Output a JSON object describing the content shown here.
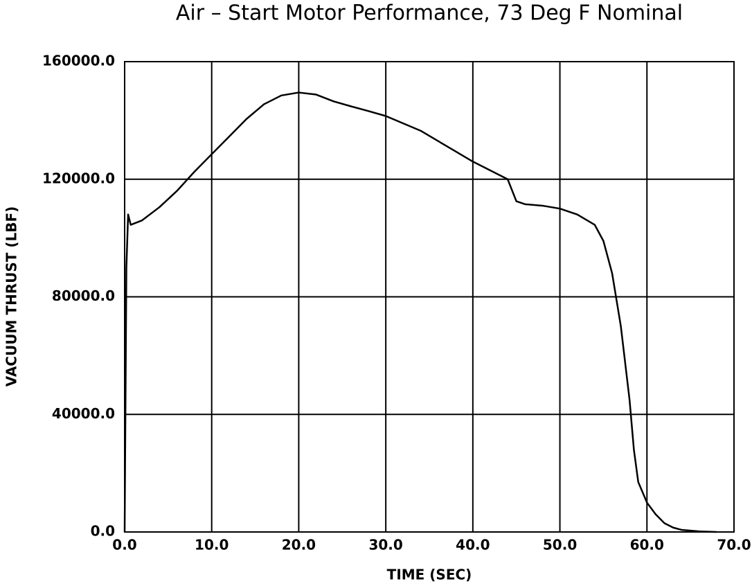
{
  "chart_data": {
    "type": "line",
    "title": "Air – Start Motor Performance, 73 Deg F Nominal",
    "x_label": "TIME (SEC)",
    "y_label": "VACUUM THRUST (LBF)",
    "color": "#000000",
    "grid": true,
    "x": [
      0,
      0.2,
      0.4,
      0.7,
      2,
      4,
      6,
      8,
      10,
      12,
      14,
      16,
      18,
      20,
      22,
      24,
      26,
      28,
      30,
      32,
      34,
      36,
      38,
      40,
      42,
      44,
      45,
      46,
      48,
      50,
      52,
      54,
      55,
      56,
      57,
      58,
      58.5,
      59,
      60,
      61,
      62,
      63,
      64,
      66,
      68
    ],
    "values": [
      0,
      90000,
      108000,
      104500,
      106000,
      110500,
      116000,
      122500,
      128500,
      134500,
      140500,
      145500,
      148500,
      149500,
      148800,
      146500,
      144800,
      143200,
      141500,
      139000,
      136500,
      133000,
      129500,
      126000,
      123000,
      120000,
      112500,
      111500,
      111000,
      110000,
      108000,
      104500,
      99000,
      88000,
      70000,
      45000,
      28000,
      17000,
      10000,
      6000,
      3000,
      1500,
      700,
      200,
      0
    ],
    "xlim": [
      0,
      70
    ],
    "xticks": [
      {
        "value": 0,
        "label": "0.0"
      },
      {
        "value": 10,
        "label": "10.0"
      },
      {
        "value": 20,
        "label": "20.0"
      },
      {
        "value": 30,
        "label": "30.0"
      },
      {
        "value": 40,
        "label": "40.0"
      },
      {
        "value": 50,
        "label": "50.0"
      },
      {
        "value": 60,
        "label": "60.0"
      },
      {
        "value": 70,
        "label": "70.0"
      }
    ],
    "ylim": [
      0,
      160000
    ],
    "yticks": [
      {
        "value": 0,
        "label": "0.0"
      },
      {
        "value": 40000,
        "label": "40000.0"
      },
      {
        "value": 80000,
        "label": "80000.0"
      },
      {
        "value": 120000,
        "label": "120000.0"
      },
      {
        "value": 160000,
        "label": "160000.0"
      }
    ]
  }
}
